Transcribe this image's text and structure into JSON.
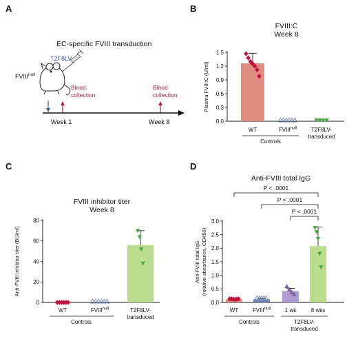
{
  "panels": {
    "a": {
      "letter": "A",
      "title": "EC-specific FVIII transduction",
      "vector": "T2F8LV",
      "mouse_label": "FVIII",
      "mouse_label_sup": "null",
      "blood1_line1": "Blood",
      "blood1_line2": "collection",
      "blood2_line1": "Blood",
      "blood2_line2": "collection",
      "week1": "Week 1",
      "week8": "Week 8"
    },
    "b": {
      "letter": "B"
    },
    "c": {
      "letter": "C"
    },
    "d": {
      "letter": "D"
    }
  },
  "colors": {
    "wt": "#c0143c",
    "fviiinull": "#6b86b3",
    "t2f8lv": "#46a642",
    "wt_bar": "#df8c80",
    "t2f8lv_bar": "#b9dc8e",
    "wk1_bar": "#ae9bcf",
    "wk1_points": "#7a5aa3",
    "arrow_blue": "#3a63a5",
    "arrow_red": "#b0203c"
  },
  "chart_data": [
    {
      "panel": "B",
      "type": "bar",
      "title_line1": "FVIII:C",
      "title_line2": "Week 8",
      "ylabel": "Plasma FVIII:C (U/ml)",
      "ylim": [
        0,
        1.5
      ],
      "yticks": [
        "0.0",
        "0.3",
        "0.6",
        "0.9",
        "1.2",
        "1.5"
      ],
      "ytick_values": [
        0,
        0.3,
        0.6,
        0.9,
        1.2,
        1.5
      ],
      "categories": [
        {
          "label": "WT",
          "sup": ""
        },
        {
          "label": "FVIII",
          "sup": "null"
        },
        {
          "label": "T2F8LV-",
          "line2": "transduced",
          "sup": ""
        }
      ],
      "values": [
        1.26,
        0.0,
        0.0
      ],
      "error": [
        0.22,
        0,
        0
      ],
      "points": [
        [
          1.47,
          1.38,
          1.3,
          1.25,
          1.2,
          1.12,
          0.98
        ],
        [
          0,
          0,
          0,
          0,
          0,
          0
        ],
        [
          0,
          0,
          0,
          0
        ]
      ],
      "group_label": "Controls"
    },
    {
      "panel": "C",
      "type": "bar",
      "title_line1": "FVIII inhibitor titer",
      "title_line2": "Week 8",
      "ylabel": "Anti-FVIII inhibitor titer (BU/ml)",
      "ylim": [
        0,
        80
      ],
      "yticks": [
        "0",
        "20",
        "40",
        "60",
        "80"
      ],
      "ytick_values": [
        0,
        20,
        40,
        60,
        80
      ],
      "categories": [
        {
          "label": "WT",
          "sup": ""
        },
        {
          "label": "FVIII",
          "sup": "null"
        },
        {
          "label": "T2F8LV-",
          "line2": "transduced",
          "sup": ""
        }
      ],
      "values": [
        0,
        0,
        56
      ],
      "error": [
        0,
        0,
        14
      ],
      "points": [
        [
          0,
          0,
          0,
          0,
          0,
          0
        ],
        [
          0,
          0,
          0,
          0,
          0,
          0
        ],
        [
          70,
          64,
          52,
          38
        ]
      ],
      "group_label": "Controls"
    },
    {
      "panel": "D",
      "type": "bar",
      "title": "Anti-FVIII total IgG",
      "ylabel_line1": "Anti-FVIII total IgG",
      "ylabel_line2": "(relative absorbance, OD450)",
      "ylim": [
        0,
        3.0
      ],
      "yticks": [
        "0.0",
        "0.5",
        "1.0",
        "1.5",
        "2.0",
        "2.5",
        "3.0"
      ],
      "ytick_values": [
        0,
        0.5,
        1.0,
        1.5,
        2.0,
        2.5,
        3.0
      ],
      "categories": [
        {
          "label": "WT",
          "sup": ""
        },
        {
          "label": "FVIII",
          "sup": "null"
        },
        {
          "label": "1 wk",
          "sup": ""
        },
        {
          "label": "8 wks",
          "sup": ""
        }
      ],
      "values": [
        0.12,
        0.12,
        0.42,
        2.08
      ],
      "error": [
        0.02,
        0.02,
        0.1,
        0.7
      ],
      "points": [
        [
          0.13,
          0.13,
          0.12,
          0.11,
          0.12,
          0.13
        ],
        [
          0.13,
          0.12,
          0.12,
          0.12,
          0.13
        ],
        [
          0.6,
          0.48,
          0.38,
          0.3
        ],
        [
          2.75,
          2.6,
          2.35,
          1.8,
          1.3
        ]
      ],
      "significance": [
        "P < .0001",
        "P < .0001",
        "P < .0001"
      ],
      "group_label_1": "Controls",
      "group_label_2_line1": "T2F8LV-",
      "group_label_2_line2": "transduced"
    }
  ]
}
